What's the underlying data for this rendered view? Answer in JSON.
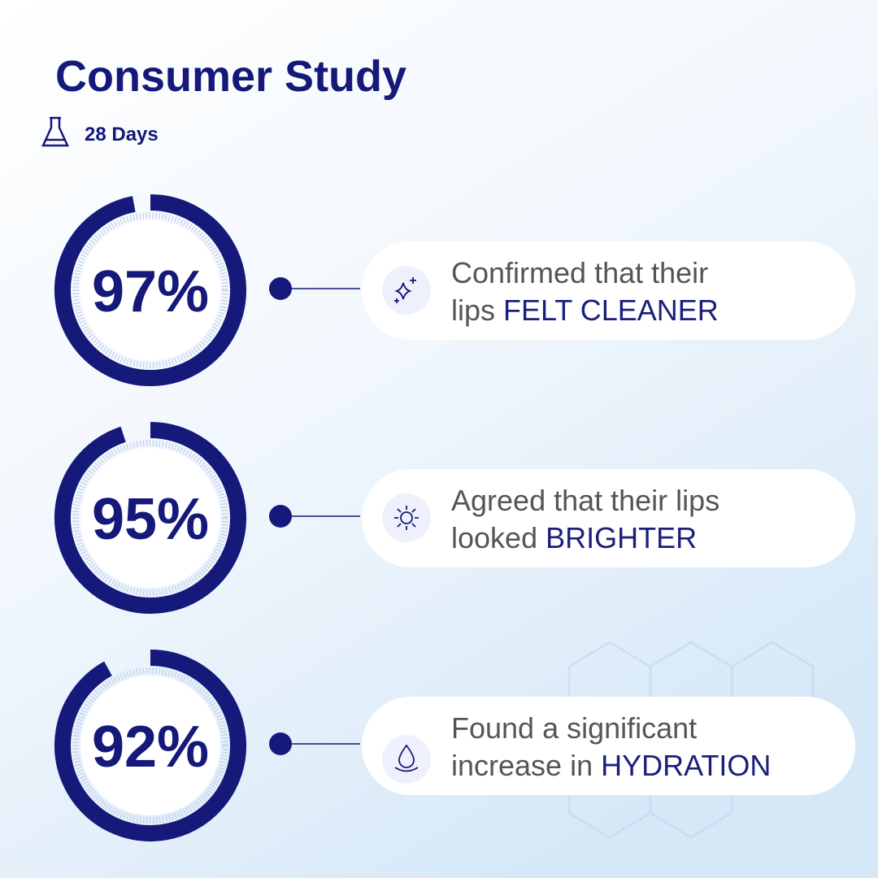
{
  "header": {
    "title": "Consumer Study",
    "duration": "28 Days"
  },
  "stats": [
    {
      "percent": {
        "value": 97,
        "label": "97%"
      },
      "line1": "Confirmed that their",
      "line2": "lips",
      "emphasis": "FELT CLEANER"
    },
    {
      "percent": {
        "value": 95,
        "label": "95%"
      },
      "line1": "Agreed that their lips",
      "line2": "looked",
      "emphasis": "BRIGHTER"
    },
    {
      "percent": {
        "value": 92,
        "label": "92%"
      },
      "line1": "Found a significant",
      "line2": "increase in",
      "emphasis": "HYDRATION"
    }
  ]
}
